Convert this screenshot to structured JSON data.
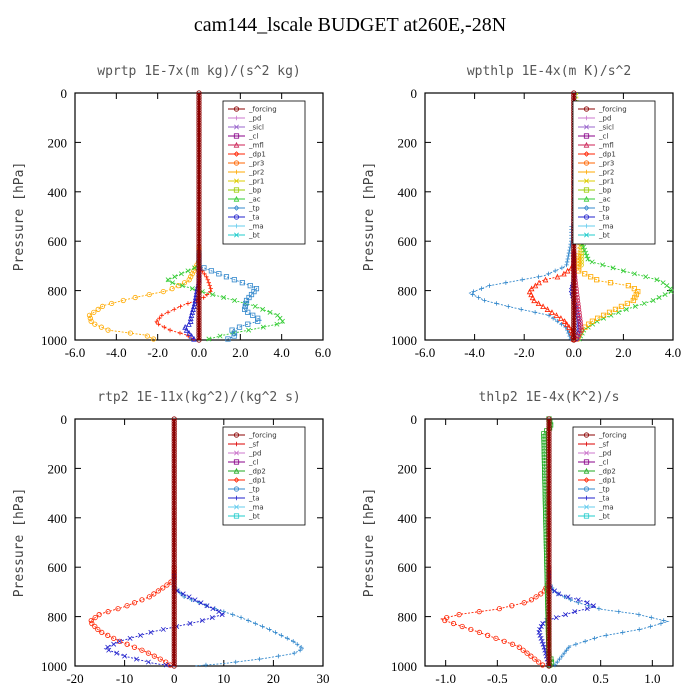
{
  "page_title": "cam144_lscale  BUDGET at260E,-28N",
  "colors": {
    "_forcing": "#8b0000",
    "_pd": "#cc77cc",
    "_sicl": "#9966cc",
    "_cl": "#880088",
    "_mfl": "#cc2255",
    "_dp1": "#ff2200",
    "_pr3": "#ff6600",
    "_pr2": "#ffaa00",
    "_pr1": "#ddcc00",
    "_bp": "#99cc00",
    "_ac": "#33cc33",
    "_tp": "#3388cc",
    "_ta": "#2222cc",
    "_ma": "#66ccee",
    "_bt": "#22cccc",
    "_sf": "#dd0000",
    "_dp2": "#22aa22"
  },
  "chart_data": [
    {
      "type": "line",
      "title": "wprtp  1E-7x(m kg)/(s^2 kg)",
      "ylabel": "Pressure [hPa]",
      "xlim": [
        -6,
        6
      ],
      "ylim": [
        1000,
        0
      ],
      "xticks": [
        -6,
        -4,
        -2,
        0,
        2,
        4,
        6
      ],
      "xtick_labels": [
        "-6.0",
        "-4.0",
        "-2.0",
        "0.0",
        "2.0",
        "4.0",
        "6.0"
      ],
      "yticks": [
        0,
        200,
        400,
        600,
        800,
        1000
      ],
      "ytick_labels": [
        "0",
        "200",
        "400",
        "600",
        "800",
        "1000"
      ],
      "legend_position": "top-right",
      "legend": [
        "_forcing",
        "_pd",
        "_sicl",
        "_cl",
        "_mfl",
        "_dp1",
        "_pr3",
        "_pr2",
        "_pr1",
        "_bp",
        "_ac",
        "_tp",
        "_ta",
        "_ma",
        "_bt"
      ],
      "series": [
        {
          "name": "_pr2",
          "x": [
            0,
            0,
            -0.5,
            -1.5,
            -3.2,
            -4.6,
            -5.3,
            -5.2,
            -4.4,
            -2.6,
            -2.1
          ],
          "y": [
            0,
            680,
            760,
            800,
            830,
            860,
            900,
            930,
            960,
            980,
            1000
          ]
        },
        {
          "name": "_dp1",
          "x": [
            0,
            0,
            0.4,
            0.6,
            0.2,
            -0.8,
            -1.8,
            -2.1,
            -1.4,
            -0.6,
            -0.2
          ],
          "y": [
            0,
            700,
            750,
            800,
            830,
            860,
            900,
            930,
            960,
            980,
            1000
          ]
        },
        {
          "name": "_ac",
          "x": [
            0,
            0,
            -0.8,
            -1.6,
            0.4,
            2.6,
            3.8,
            4.1,
            3.0,
            1.2,
            0.3
          ],
          "y": [
            0,
            700,
            730,
            760,
            810,
            860,
            900,
            930,
            950,
            980,
            1000
          ]
        },
        {
          "name": "_tp",
          "x": [
            0,
            0,
            1.2,
            2.8,
            2.3,
            2.2,
            3.0,
            2.2,
            1.6,
            1.8,
            1.3
          ],
          "y": [
            0,
            700,
            740,
            790,
            840,
            880,
            920,
            940,
            960,
            980,
            1000
          ]
        },
        {
          "name": "_ta",
          "x": [
            0,
            0,
            -0.1,
            -0.2,
            -0.3,
            -0.4,
            -0.4,
            -0.7,
            -0.5,
            -0.2
          ],
          "y": [
            0,
            760,
            800,
            850,
            880,
            910,
            930,
            950,
            970,
            1000
          ]
        },
        {
          "name": "_forcing",
          "x": [
            0,
            0
          ],
          "y": [
            0,
            1000
          ]
        }
      ]
    },
    {
      "type": "line",
      "title": "wpthlp  1E-4x(m K)/s^2",
      "ylabel": "Pressure [hPa]",
      "xlim": [
        -6,
        4
      ],
      "ylim": [
        1000,
        0
      ],
      "xticks": [
        -6,
        -4,
        -2,
        0,
        2,
        4
      ],
      "xtick_labels": [
        "-6.0",
        "-4.0",
        "-2.0",
        "0.0",
        "2.0",
        "4.0"
      ],
      "yticks": [
        0,
        200,
        400,
        600,
        800,
        1000
      ],
      "ytick_labels": [
        "0",
        "200",
        "400",
        "600",
        "800",
        "1000"
      ],
      "legend_position": "top-right",
      "legend": [
        "_forcing",
        "_pd",
        "_sicl",
        "_cl",
        "_mfl",
        "_dp1",
        "_pr3",
        "_pr2",
        "_pr1",
        "_bp",
        "_ac",
        "_tp",
        "_ta",
        "_ma",
        "_bt"
      ],
      "series": [
        {
          "name": "_pr1",
          "x": [
            0.15,
            0.2,
            0.2,
            0.3,
            0.3,
            0.3
          ],
          "y": [
            0,
            100,
            300,
            500,
            650,
            700
          ]
        },
        {
          "name": "_tp",
          "x": [
            0,
            -0.1,
            -0.3,
            -1.2,
            -3.4,
            -4.2,
            -3.6,
            -2.4,
            -1.0,
            -0.3,
            -0.1
          ],
          "y": [
            0,
            600,
            700,
            740,
            780,
            810,
            840,
            870,
            900,
            950,
            1000
          ]
        },
        {
          "name": "_ac",
          "x": [
            0.1,
            0.3,
            0.6,
            2.0,
            3.5,
            4.0,
            3.2,
            2.0,
            1.0,
            0.4,
            0.2
          ],
          "y": [
            0,
            600,
            680,
            720,
            760,
            800,
            840,
            880,
            920,
            960,
            1000
          ]
        },
        {
          "name": "_pr2",
          "x": [
            0,
            0.2,
            1.0,
            2.2,
            2.6,
            2.4,
            1.6,
            0.8,
            0.3,
            0.1
          ],
          "y": [
            0,
            720,
            760,
            780,
            800,
            840,
            880,
            920,
            960,
            1000
          ]
        },
        {
          "name": "_dp1",
          "x": [
            0,
            0,
            -0.5,
            -1.3,
            -1.8,
            -1.6,
            -1.0,
            -0.4,
            -0.1,
            0
          ],
          "y": [
            0,
            700,
            740,
            760,
            800,
            840,
            880,
            920,
            960,
            1000
          ]
        },
        {
          "name": "_ta",
          "x": [
            0,
            0,
            0,
            -0.1,
            0,
            0.1,
            0.2,
            0.2,
            0.1
          ],
          "y": [
            0,
            700,
            760,
            800,
            840,
            880,
            920,
            960,
            1000
          ]
        },
        {
          "name": "_mfl",
          "x": [
            0,
            0,
            0.05,
            0.1,
            0.15,
            0.2,
            0.25,
            0.3,
            0.1
          ],
          "y": [
            0,
            700,
            760,
            800,
            840,
            880,
            920,
            960,
            1000
          ]
        },
        {
          "name": "_forcing",
          "x": [
            0,
            0
          ],
          "y": [
            0,
            1000
          ]
        }
      ]
    },
    {
      "type": "line",
      "title": "rtp2  1E-11x(kg^2)/(kg^2 s)",
      "ylabel": "Pressure [hPa]",
      "xlim": [
        -20,
        30
      ],
      "ylim": [
        1000,
        0
      ],
      "xticks": [
        -20,
        -10,
        0,
        10,
        20,
        30
      ],
      "xtick_labels": [
        "-20",
        "-10",
        "0",
        "10",
        "20",
        "30"
      ],
      "yticks": [
        0,
        200,
        400,
        600,
        800,
        1000
      ],
      "ytick_labels": [
        "0",
        "200",
        "400",
        "600",
        "800",
        "1000"
      ],
      "legend_position": "top-right",
      "legend": [
        "_forcing",
        "_sf",
        "_pd",
        "_cl",
        "_dp2",
        "_dp1",
        "_tp",
        "_ta",
        "_ma",
        "_bt"
      ],
      "series": [
        {
          "name": "_dp1",
          "x": [
            0,
            0,
            -2,
            -5,
            -10,
            -15,
            -17,
            -15,
            -11,
            -6,
            -2,
            -0.5
          ],
          "y": [
            0,
            650,
            680,
            720,
            760,
            790,
            820,
            860,
            900,
            940,
            980,
            1000
          ]
        },
        {
          "name": "_tp",
          "x": [
            0,
            0,
            2,
            7,
            13,
            19,
            24,
            26,
            24,
            18,
            10,
            4
          ],
          "y": [
            0,
            680,
            720,
            760,
            800,
            850,
            900,
            930,
            950,
            970,
            990,
            1000
          ]
        },
        {
          "name": "_ta",
          "x": [
            0,
            0,
            3,
            7,
            10,
            5,
            -4,
            -11,
            -14,
            -10,
            -4,
            0
          ],
          "y": [
            0,
            690,
            720,
            760,
            790,
            820,
            860,
            900,
            930,
            960,
            990,
            1000
          ]
        },
        {
          "name": "_forcing",
          "x": [
            0,
            0
          ],
          "y": [
            0,
            1000
          ]
        }
      ]
    },
    {
      "type": "line",
      "title": "thlp2  1E-4x(K^2)/s",
      "ylabel": "Pressure [hPa]",
      "xlim": [
        -1.2,
        1.2
      ],
      "ylim": [
        1000,
        0
      ],
      "xticks": [
        -1.0,
        -0.5,
        0.0,
        0.5,
        1.0
      ],
      "xtick_labels": [
        "-1.0",
        "-0.5",
        "0.0",
        "0.5",
        "1.0"
      ],
      "yticks": [
        0,
        200,
        400,
        600,
        800,
        1000
      ],
      "ytick_labels": [
        "0",
        "200",
        "400",
        "600",
        "800",
        "1000"
      ],
      "legend_position": "top-right",
      "legend": [
        "_forcing",
        "_sf",
        "_pd",
        "_cl",
        "_dp2",
        "_dp1",
        "_tp",
        "_ta",
        "_ma",
        "_bt"
      ],
      "series": [
        {
          "name": "_dp1",
          "x": [
            0,
            0,
            -0.05,
            -0.2,
            -0.5,
            -0.85,
            -1.05,
            -0.7,
            -0.3,
            -0.05
          ],
          "y": [
            0,
            660,
            700,
            740,
            770,
            790,
            810,
            860,
            920,
            1000
          ]
        },
        {
          "name": "_tp",
          "x": [
            0,
            0,
            0.05,
            0.25,
            0.5,
            0.85,
            1.15,
            0.9,
            0.5,
            0.2,
            0.05
          ],
          "y": [
            0,
            660,
            700,
            740,
            770,
            790,
            820,
            850,
            880,
            920,
            1000
          ]
        },
        {
          "name": "_ta",
          "x": [
            0,
            0,
            0.1,
            0.35,
            0.45,
            0.25,
            -0.05,
            -0.1,
            -0.05,
            0
          ],
          "y": [
            0,
            680,
            710,
            740,
            760,
            780,
            820,
            860,
            920,
            1000
          ]
        },
        {
          "name": "_dp2",
          "x": [
            0,
            0.02,
            -0.05,
            0,
            0.03,
            0
          ],
          "y": [
            0,
            30,
            60,
            960,
            980,
            1000
          ]
        },
        {
          "name": "_forcing",
          "x": [
            0,
            0
          ],
          "y": [
            0,
            1000
          ]
        }
      ]
    }
  ]
}
